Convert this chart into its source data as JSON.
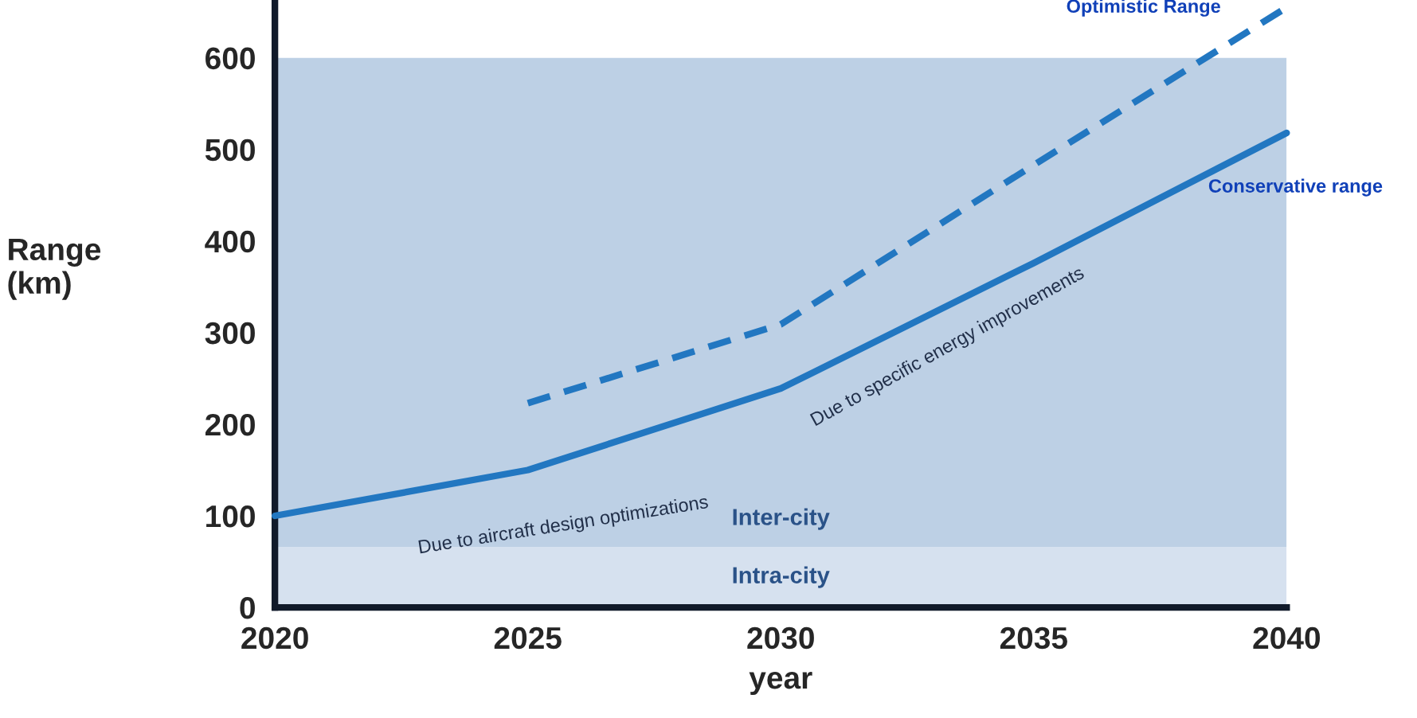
{
  "chart_data": {
    "type": "line",
    "xlabel": "year",
    "ylabel": "Range\n(km)",
    "x": [
      2020,
      2025,
      2030,
      2035,
      2040
    ],
    "series": [
      {
        "name": "Conservative range",
        "color": "#2277c1",
        "line_style": "solid",
        "values": [
          100,
          150,
          239,
          376,
          518
        ]
      },
      {
        "name": "Optimistic Range",
        "color": "#2277c1",
        "line_style": "dashed",
        "values": [
          null,
          223,
          309,
          483,
          655
        ]
      }
    ],
    "xlim": [
      2020,
      2040
    ],
    "xticks": [
      2020,
      2025,
      2030,
      2035,
      2040
    ],
    "ylim": [
      0,
      660
    ],
    "yticks": [
      0,
      100,
      200,
      300,
      400,
      500,
      600
    ],
    "bands": [
      {
        "axis": "y",
        "from": 0,
        "to": 66,
        "label": "Intra-city",
        "color": "#d6e1ef"
      },
      {
        "axis": "y",
        "from": 66,
        "to": 600,
        "label": "Inter-city",
        "color": "#bdd0e5"
      }
    ],
    "annotations": [
      "Due to aircraft design optimizations",
      "Due to specific energy improvements"
    ],
    "grid": false,
    "legend": false,
    "marker": "none"
  }
}
